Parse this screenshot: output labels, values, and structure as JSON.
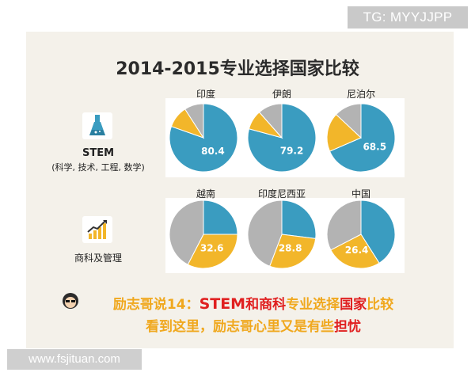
{
  "watermark": "TG: MYYJJPP",
  "footer_url": "www.fsjituan.com",
  "colors": {
    "blue": "#3a9cc0",
    "yellow": "#f2b62a",
    "gray": "#b3b3b3"
  },
  "rows": [
    {
      "label_line1": "STEM",
      "label_line2": "(科学, 技术, 工程, 数学)",
      "icon": "flask-icon"
    },
    {
      "label_line1": "商科及管理",
      "label_line2": "",
      "icon": "growth-chart-icon"
    }
  ],
  "caption": {
    "prefix": "励志哥说14：",
    "stem": "STEM",
    "mid1": "和",
    "biz": "商科",
    "mid2": "专业选择",
    "guojia": "国家",
    "end": "比较",
    "line2_start": "看到这里，励志哥心里又是有些",
    "line2_end": "担忧"
  },
  "chart_data": {
    "type": "pie",
    "title": "2014-2015专业选择国家比较",
    "charts": [
      {
        "country": "印度",
        "row": "STEM",
        "slices": [
          {
            "color": "blue",
            "value": 80.4,
            "label": "80.4"
          },
          {
            "color": "yellow",
            "value": 10.5
          },
          {
            "color": "gray",
            "value": 9.1
          }
        ]
      },
      {
        "country": "伊朗",
        "row": "STEM",
        "slices": [
          {
            "color": "blue",
            "value": 79.2,
            "label": "79.2"
          },
          {
            "color": "yellow",
            "value": 9.3
          },
          {
            "color": "gray",
            "value": 11.5
          }
        ]
      },
      {
        "country": "尼泊尔",
        "row": "STEM",
        "slices": [
          {
            "color": "blue",
            "value": 68.5,
            "label": "68.5"
          },
          {
            "color": "yellow",
            "value": 18.5
          },
          {
            "color": "gray",
            "value": 13.0
          }
        ]
      },
      {
        "country": "越南",
        "row": "商科及管理",
        "slices": [
          {
            "color": "blue",
            "value": 25.0
          },
          {
            "color": "yellow",
            "value": 32.6,
            "label": "32.6"
          },
          {
            "color": "gray",
            "value": 42.4
          }
        ]
      },
      {
        "country": "印度尼西亚",
        "row": "商科及管理",
        "slices": [
          {
            "color": "blue",
            "value": 27.0
          },
          {
            "color": "yellow",
            "value": 28.8,
            "label": "28.8"
          },
          {
            "color": "gray",
            "value": 44.2
          }
        ]
      },
      {
        "country": "中国",
        "row": "商科及管理",
        "slices": [
          {
            "color": "blue",
            "value": 41.0
          },
          {
            "color": "yellow",
            "value": 26.4,
            "label": "26.4"
          },
          {
            "color": "gray",
            "value": 32.6
          }
        ]
      }
    ]
  }
}
